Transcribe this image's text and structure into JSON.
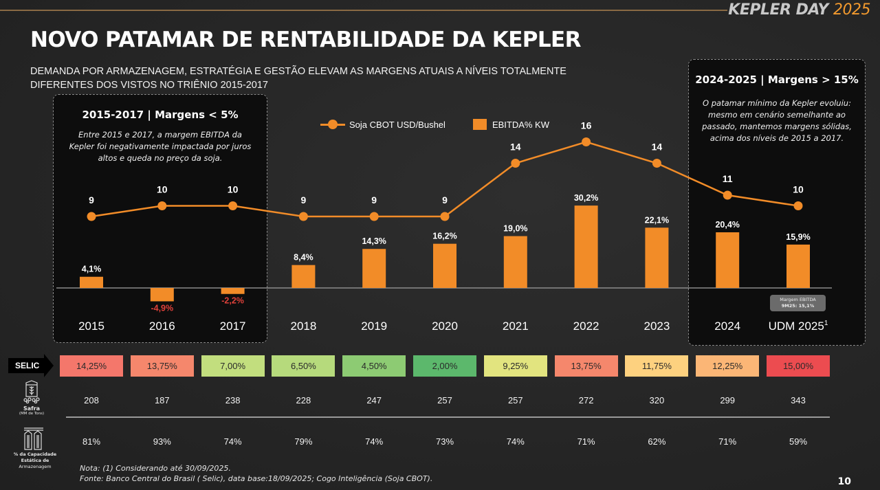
{
  "header": {
    "brand_main": "KEPLER DAY",
    "brand_year": "2025",
    "title": "NOVO PATAMAR DE RENTABILIDADE DA KEPLER",
    "subtitle_line1": "DEMANDA POR ARMAZENAGEM, ESTRATÉGIA E GESTÃO ELEVAM AS MARGENS ATUAIS A NÍVEIS TOTALMENTE",
    "subtitle_line2": "DIFERENTES DOS VISTOS NO TRIÊNIO 2015-2017"
  },
  "callouts": {
    "left": {
      "title": "2015-2017 | Margens < 5%",
      "text": "Entre 2015 e 2017, a margem EBITDA da Kepler foi negativamente impactada por juros altos e queda no preço da soja."
    },
    "right": {
      "title": "2024-2025 | Margens > 15%",
      "text": "O patamar mínimo da Kepler evoluiu: mesmo em cenário semelhante ao passado, mantemos margens sólidas, acima dos níveis de 2015 a 2017."
    }
  },
  "badge": {
    "line1": "Margem EBITDA",
    "line2": "9M25: 15,1%"
  },
  "colors": {
    "accent": "#f28c28",
    "negative_label": "#e0413a"
  },
  "chart_data": {
    "type": "bar",
    "title": "",
    "categories": [
      "2015",
      "2016",
      "2017",
      "2018",
      "2019",
      "2020",
      "2021",
      "2022",
      "2023",
      "2024",
      "UDM 2025"
    ],
    "category_superscripts": [
      "",
      "",
      "",
      "",
      "",
      "",
      "",
      "",
      "",
      "",
      "1"
    ],
    "legend_position": "top-center",
    "series": [
      {
        "name": "EBITDA% KW",
        "type": "bar",
        "values": [
          4.1,
          -4.9,
          -2.2,
          8.4,
          14.3,
          16.2,
          19.0,
          30.2,
          22.1,
          20.4,
          15.9
        ],
        "labels": [
          "4,1%",
          "-4,9%",
          "-2,2%",
          "8,4%",
          "14,3%",
          "16,2%",
          "19,0%",
          "30,2%",
          "22,1%",
          "20,4%",
          "15,9%"
        ]
      },
      {
        "name": "Soja CBOT USD/Bushel",
        "type": "line",
        "values": [
          9,
          10,
          10,
          9,
          9,
          9,
          14,
          16,
          14,
          11,
          10
        ],
        "labels": [
          "9",
          "10",
          "10",
          "9",
          "9",
          "9",
          "14",
          "16",
          "14",
          "11",
          "10"
        ]
      }
    ],
    "grid": false
  },
  "table": {
    "selic_label": "SELIC",
    "selic": [
      {
        "value": "14,25%",
        "color": "#f4776b"
      },
      {
        "value": "13,75%",
        "color": "#f5876c"
      },
      {
        "value": "7,00%",
        "color": "#c2de7e"
      },
      {
        "value": "6,50%",
        "color": "#b6da7c"
      },
      {
        "value": "4,50%",
        "color": "#8dcb73"
      },
      {
        "value": "2,00%",
        "color": "#5cb86c"
      },
      {
        "value": "9,25%",
        "color": "#e2e47f"
      },
      {
        "value": "13,75%",
        "color": "#f5876c"
      },
      {
        "value": "11,75%",
        "color": "#fdd17f"
      },
      {
        "value": "12,25%",
        "color": "#fbb676"
      },
      {
        "value": "15,00%",
        "color": "#ec4c50"
      }
    ],
    "safra_label": "Safra",
    "safra_unit": "(MM de Tons)",
    "safra": [
      "208",
      "187",
      "238",
      "228",
      "247",
      "257",
      "257",
      "272",
      "320",
      "299",
      "343"
    ],
    "capacity_label_1": "% da Capacidade Estática de",
    "capacity_label_2": "Armazenagem",
    "capacity": [
      "81%",
      "93%",
      "74%",
      "79%",
      "74%",
      "73%",
      "74%",
      "71%",
      "62%",
      "71%",
      "59%"
    ]
  },
  "footer": {
    "note": "Nota: (1) Considerando até 30/09/2025.",
    "source": "Fonte: Banco Central do Brasil ( Selic), data base:18/09/2025; Cogo Inteligência (Soja CBOT).",
    "page_number": "10"
  }
}
